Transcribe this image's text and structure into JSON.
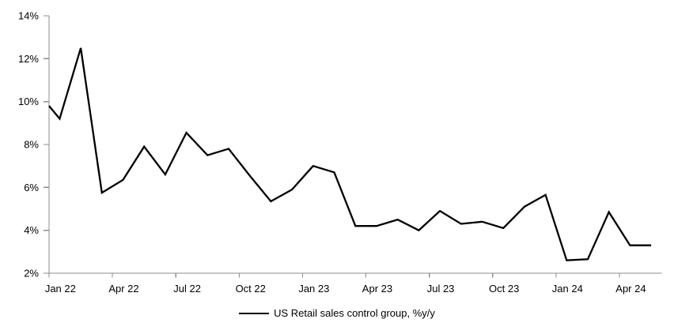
{
  "chart": {
    "background": "#ffffff",
    "axis_color": "#8c8c8c",
    "text_color": "#000000",
    "line_color": "#000000"
  },
  "chart_data": {
    "type": "line",
    "title": "",
    "xlabel": "",
    "ylabel": "",
    "categories": [
      "Jan 22",
      "Feb 22",
      "Mar 22",
      "Apr 22",
      "May 22",
      "Jun 22",
      "Jul 22",
      "Aug 22",
      "Sep 22",
      "Oct 22",
      "Nov 22",
      "Dec 22",
      "Jan 23",
      "Feb 23",
      "Mar 23",
      "Apr 23",
      "May 23",
      "Jun 23",
      "Jul 23",
      "Aug 23",
      "Sep 23",
      "Oct 23",
      "Nov 23",
      "Dec 23",
      "Jan 24",
      "Feb 24",
      "Mar 24",
      "Apr 24",
      "May 24"
    ],
    "series": [
      {
        "name": "US Retail sales control group, %y/y",
        "color": "#000000",
        "values": [
          9.2,
          12.5,
          5.75,
          6.35,
          7.9,
          6.6,
          8.55,
          7.5,
          7.8,
          6.55,
          5.35,
          5.9,
          7.0,
          6.7,
          4.2,
          4.2,
          4.5,
          4.0,
          4.9,
          4.3,
          4.4,
          4.1,
          5.1,
          5.65,
          2.6,
          2.65,
          4.85,
          3.3,
          3.3
        ]
      }
    ],
    "lead_in_value_at_left_edge": 9.8,
    "ylim": [
      2,
      14
    ],
    "y_ticks": [
      {
        "value": 2,
        "label": "2%"
      },
      {
        "value": 4,
        "label": "4%"
      },
      {
        "value": 6,
        "label": "6%"
      },
      {
        "value": 8,
        "label": "8%"
      },
      {
        "value": 10,
        "label": "10%"
      },
      {
        "value": 12,
        "label": "12%"
      },
      {
        "value": 14,
        "label": "14%"
      }
    ],
    "x_tick_label_indices": [
      0,
      3,
      6,
      9,
      12,
      15,
      18,
      21,
      24,
      27
    ],
    "x_boundary_tick_every": 3,
    "grid": false,
    "legend_position": "bottom-center"
  }
}
